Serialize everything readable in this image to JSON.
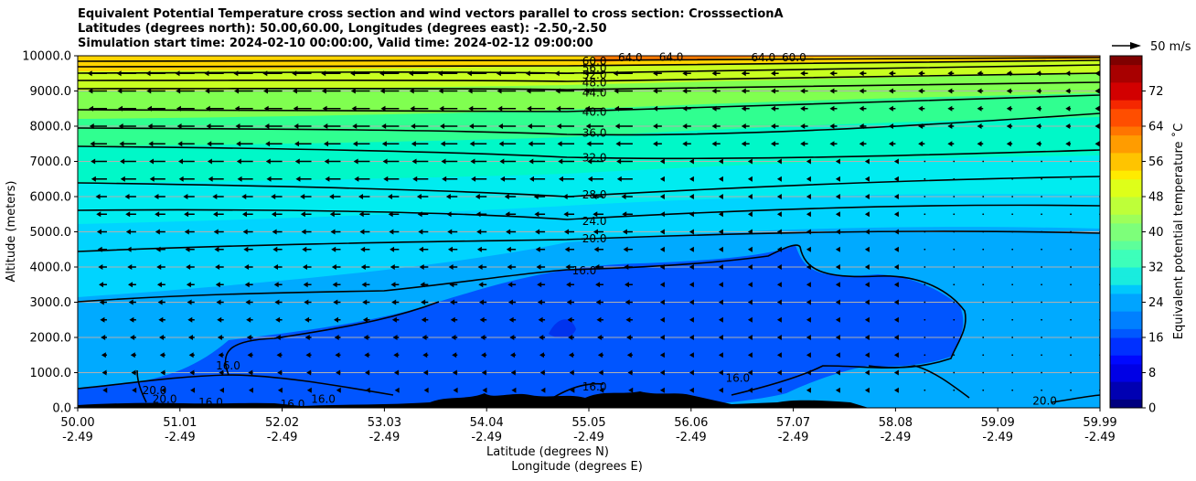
{
  "title_lines": [
    "Equivalent Potential Temperature cross section and wind vectors parallel to cross section: CrosssectionA",
    "Latitudes (degrees north): 50.00,60.00, Longitudes (degrees east): -2.50,-2.50",
    "Simulation start time: 2024-02-10 00:00:00, Valid time: 2024-02-12 09:00:00"
  ],
  "chart_data": {
    "type": "contour",
    "ylabel": "Altitude (meters)",
    "xlabel_1": "Latitude (degrees N)",
    "xlabel_2": "Longitude (degrees E)",
    "ylim": [
      0,
      10000
    ],
    "y_ticks": [
      "0.0",
      "1000.0",
      "2000.0",
      "3000.0",
      "4000.0",
      "5000.0",
      "6000.0",
      "7000.0",
      "8000.0",
      "9000.0",
      "10000.0"
    ],
    "x_ticks_lat": [
      "50.00",
      "51.01",
      "52.02",
      "53.03",
      "54.04",
      "55.05",
      "56.06",
      "57.07",
      "58.08",
      "59.09",
      "59.99"
    ],
    "x_ticks_lon": [
      "-2.49",
      "-2.49",
      "-2.49",
      "-2.49",
      "-2.49",
      "-2.49",
      "-2.49",
      "-2.49",
      "-2.49",
      "-2.49",
      "-2.49"
    ],
    "grid": "horizontal",
    "colorbar": {
      "label": "Equivalent potential temperature ˚C",
      "range": [
        0,
        80
      ],
      "ticks": [
        "0",
        "8",
        "16",
        "24",
        "32",
        "40",
        "48",
        "56",
        "64",
        "72"
      ]
    },
    "wind_key": "50 m/s",
    "contour_labels": [
      {
        "text": "60.0",
        "x": 55.05,
        "y": 9850
      },
      {
        "text": "56.0",
        "x": 55.05,
        "y": 9650
      },
      {
        "text": "52.0",
        "x": 55.05,
        "y": 9450
      },
      {
        "text": "48.0",
        "x": 55.05,
        "y": 9230
      },
      {
        "text": "44.0",
        "x": 55.05,
        "y": 8950
      },
      {
        "text": "40.0",
        "x": 55.05,
        "y": 8400
      },
      {
        "text": "36.0",
        "x": 55.05,
        "y": 7800
      },
      {
        "text": "32.0",
        "x": 55.05,
        "y": 7100
      },
      {
        "text": "28.0",
        "x": 55.05,
        "y": 6050
      },
      {
        "text": "24.0",
        "x": 55.05,
        "y": 5300
      },
      {
        "text": "20.0",
        "x": 55.05,
        "y": 4800
      },
      {
        "text": "16.0",
        "x": 54.95,
        "y": 3900
      },
      {
        "text": "16.0",
        "x": 51.47,
        "y": 1200
      },
      {
        "text": "16.0",
        "x": 55.05,
        "y": 600
      },
      {
        "text": "16.0",
        "x": 56.45,
        "y": 850
      },
      {
        "text": "20.0",
        "x": 59.45,
        "y": 200
      },
      {
        "text": "20.0",
        "x": 50.75,
        "y": 500
      },
      {
        "text": "20.0",
        "x": 50.85,
        "y": 250
      },
      {
        "text": "16.0",
        "x": 51.3,
        "y": 150
      },
      {
        "text": "16.0",
        "x": 52.1,
        "y": 100
      },
      {
        "text": "16.0",
        "x": 52.4,
        "y": 250
      },
      {
        "text": "64.0",
        "x": 55.4,
        "y": 9950
      },
      {
        "text": "64.0",
        "x": 56.7,
        "y": 9950
      },
      {
        "text": "60.0",
        "x": 57.0,
        "y": 9950
      },
      {
        "text": "64.0",
        "x": 55.8,
        "y": 9960
      }
    ]
  }
}
